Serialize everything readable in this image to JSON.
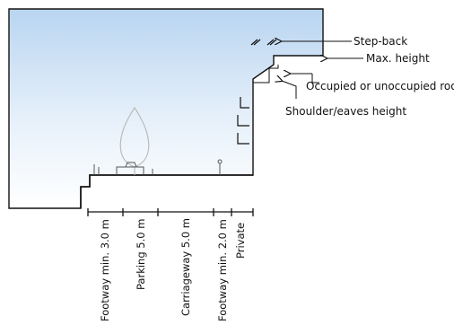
{
  "annotations": {
    "step_back": "Step-back",
    "max_height": "Max. height",
    "roof": "Occupied or unoccupied roof",
    "shoulder": "Shoulder/eaves height"
  },
  "zones": [
    {
      "label": "Footway min. 3.0 m"
    },
    {
      "label": "Parking 5.0 m"
    },
    {
      "label": "Carriageway 5.0 m"
    },
    {
      "label": "Footway min. 2.0 m"
    },
    {
      "label": "Private"
    }
  ],
  "colors": {
    "sky_top": "#b9d5f0",
    "sky_bottom": "#ffffff",
    "outline": "#111111"
  }
}
